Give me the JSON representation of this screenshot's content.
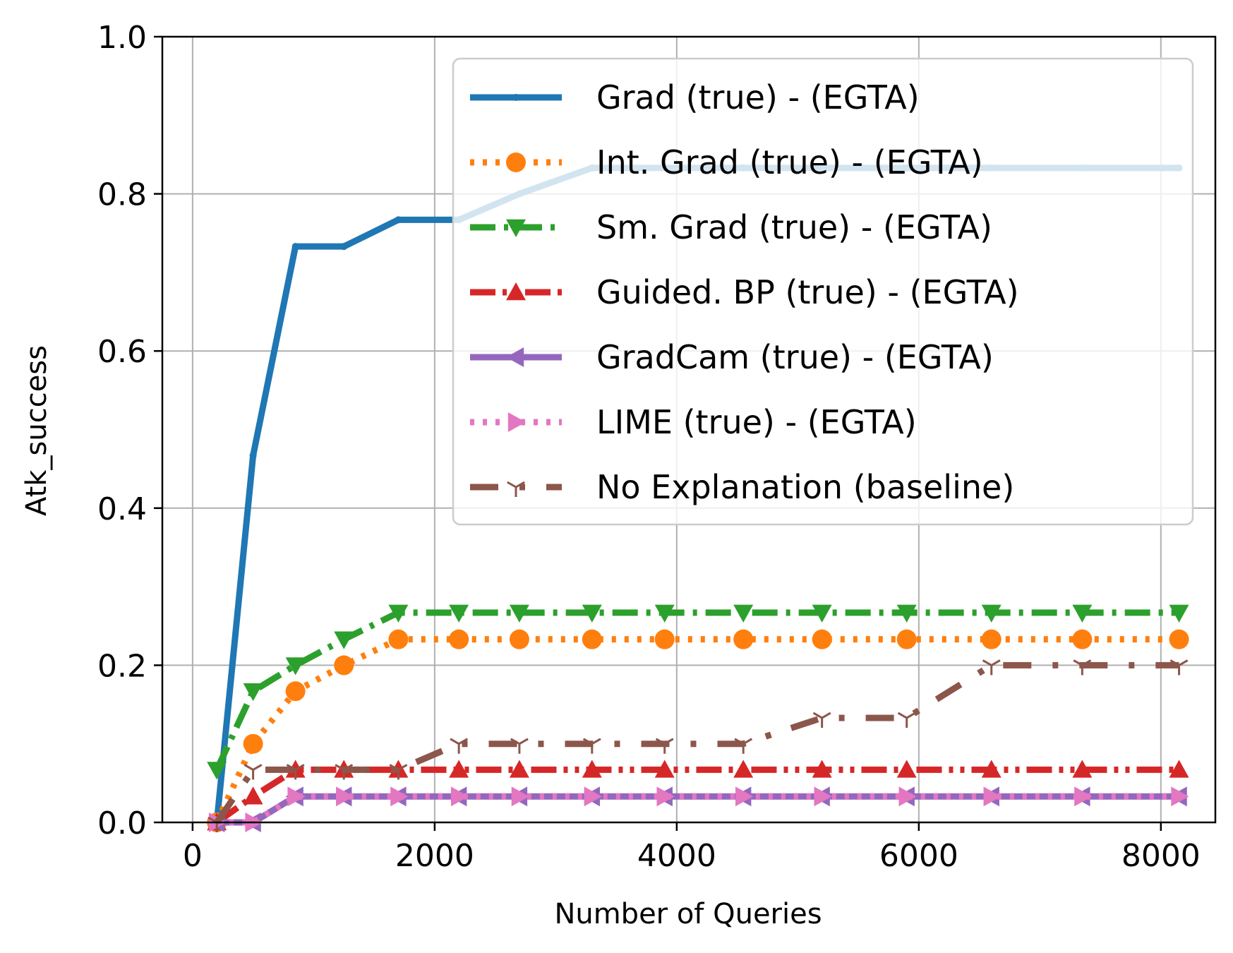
{
  "chart_data": {
    "type": "line",
    "xlabel": "Number of Queries",
    "ylabel": "Atk_success",
    "xlim": [
      -250,
      8450
    ],
    "ylim": [
      0.0,
      1.0
    ],
    "xticks": [
      0,
      2000,
      4000,
      6000,
      8000
    ],
    "xtick_labels": [
      "0",
      "2000",
      "4000",
      "6000",
      "8000"
    ],
    "yticks": [
      0.0,
      0.2,
      0.4,
      0.6,
      0.8,
      1.0
    ],
    "ytick_labels": [
      "0.0",
      "0.2",
      "0.4",
      "0.6",
      "0.8",
      "1.0"
    ],
    "grid": true,
    "legend_position": "top-right",
    "series": [
      {
        "name": "Grad (true) - (EGTA)",
        "color": "#1f77b4",
        "line_style": "solid",
        "marker": "point",
        "x": [
          200,
          500,
          850,
          1250,
          1700,
          2200,
          2700,
          3300,
          3900,
          4550,
          5200,
          5900,
          6600,
          7350,
          8150
        ],
        "y": [
          0.0,
          0.467,
          0.733,
          0.733,
          0.767,
          0.767,
          0.8,
          0.833,
          0.833,
          0.833,
          0.833,
          0.833,
          0.833,
          0.833,
          0.833
        ]
      },
      {
        "name": "Int. Grad (true) - (EGTA)",
        "color": "#ff7f0e",
        "line_style": "dotted",
        "marker": "circle",
        "x": [
          200,
          500,
          850,
          1250,
          1700,
          2200,
          2700,
          3300,
          3900,
          4550,
          5200,
          5900,
          6600,
          7350,
          8150
        ],
        "y": [
          0.0,
          0.1,
          0.167,
          0.2,
          0.233,
          0.233,
          0.233,
          0.233,
          0.233,
          0.233,
          0.233,
          0.233,
          0.233,
          0.233,
          0.233
        ]
      },
      {
        "name": "Sm. Grad (true) - (EGTA)",
        "color": "#2ca02c",
        "line_style": "dashdot",
        "marker": "triangle-down",
        "x": [
          200,
          500,
          850,
          1250,
          1700,
          2200,
          2700,
          3300,
          3900,
          4550,
          5200,
          5900,
          6600,
          7350,
          8150
        ],
        "y": [
          0.067,
          0.167,
          0.2,
          0.233,
          0.267,
          0.267,
          0.267,
          0.267,
          0.267,
          0.267,
          0.267,
          0.267,
          0.267,
          0.267,
          0.267
        ]
      },
      {
        "name": "Guided. BP (true) - (EGTA)",
        "color": "#d62728",
        "line_style": "dashdotdot",
        "marker": "triangle-up",
        "x": [
          200,
          500,
          850,
          1250,
          1700,
          2200,
          2700,
          3300,
          3900,
          4550,
          5200,
          5900,
          6600,
          7350,
          8150
        ],
        "y": [
          0.0,
          0.033,
          0.067,
          0.067,
          0.067,
          0.067,
          0.067,
          0.067,
          0.067,
          0.067,
          0.067,
          0.067,
          0.067,
          0.067,
          0.067
        ]
      },
      {
        "name": "GradCam (true) - (EGTA)",
        "color": "#9467bd",
        "line_style": "solid",
        "marker": "triangle-left",
        "x": [
          200,
          500,
          850,
          1250,
          1700,
          2200,
          2700,
          3300,
          3900,
          4550,
          5200,
          5900,
          6600,
          7350,
          8150
        ],
        "y": [
          0.0,
          0.0,
          0.033,
          0.033,
          0.033,
          0.033,
          0.033,
          0.033,
          0.033,
          0.033,
          0.033,
          0.033,
          0.033,
          0.033,
          0.033
        ]
      },
      {
        "name": "LIME (true) - (EGTA)",
        "color": "#e377c2",
        "line_style": "dotted",
        "marker": "triangle-right",
        "x": [
          200,
          500,
          850,
          1250,
          1700,
          2200,
          2700,
          3300,
          3900,
          4550,
          5200,
          5900,
          6600,
          7350,
          8150
        ],
        "y": [
          0.0,
          0.0,
          0.033,
          0.033,
          0.033,
          0.033,
          0.033,
          0.033,
          0.033,
          0.033,
          0.033,
          0.033,
          0.033,
          0.033,
          0.033
        ]
      },
      {
        "name": "No Explanation (baseline)",
        "color": "#8c564b",
        "line_style": "longdashdot",
        "marker": "tri-down",
        "x": [
          200,
          500,
          850,
          1250,
          1700,
          2200,
          2700,
          3300,
          3900,
          4550,
          5200,
          5900,
          6600,
          7350,
          8150
        ],
        "y": [
          0.0,
          0.067,
          0.067,
          0.067,
          0.067,
          0.1,
          0.1,
          0.1,
          0.1,
          0.1,
          0.133,
          0.133,
          0.2,
          0.2,
          0.2
        ]
      }
    ]
  }
}
